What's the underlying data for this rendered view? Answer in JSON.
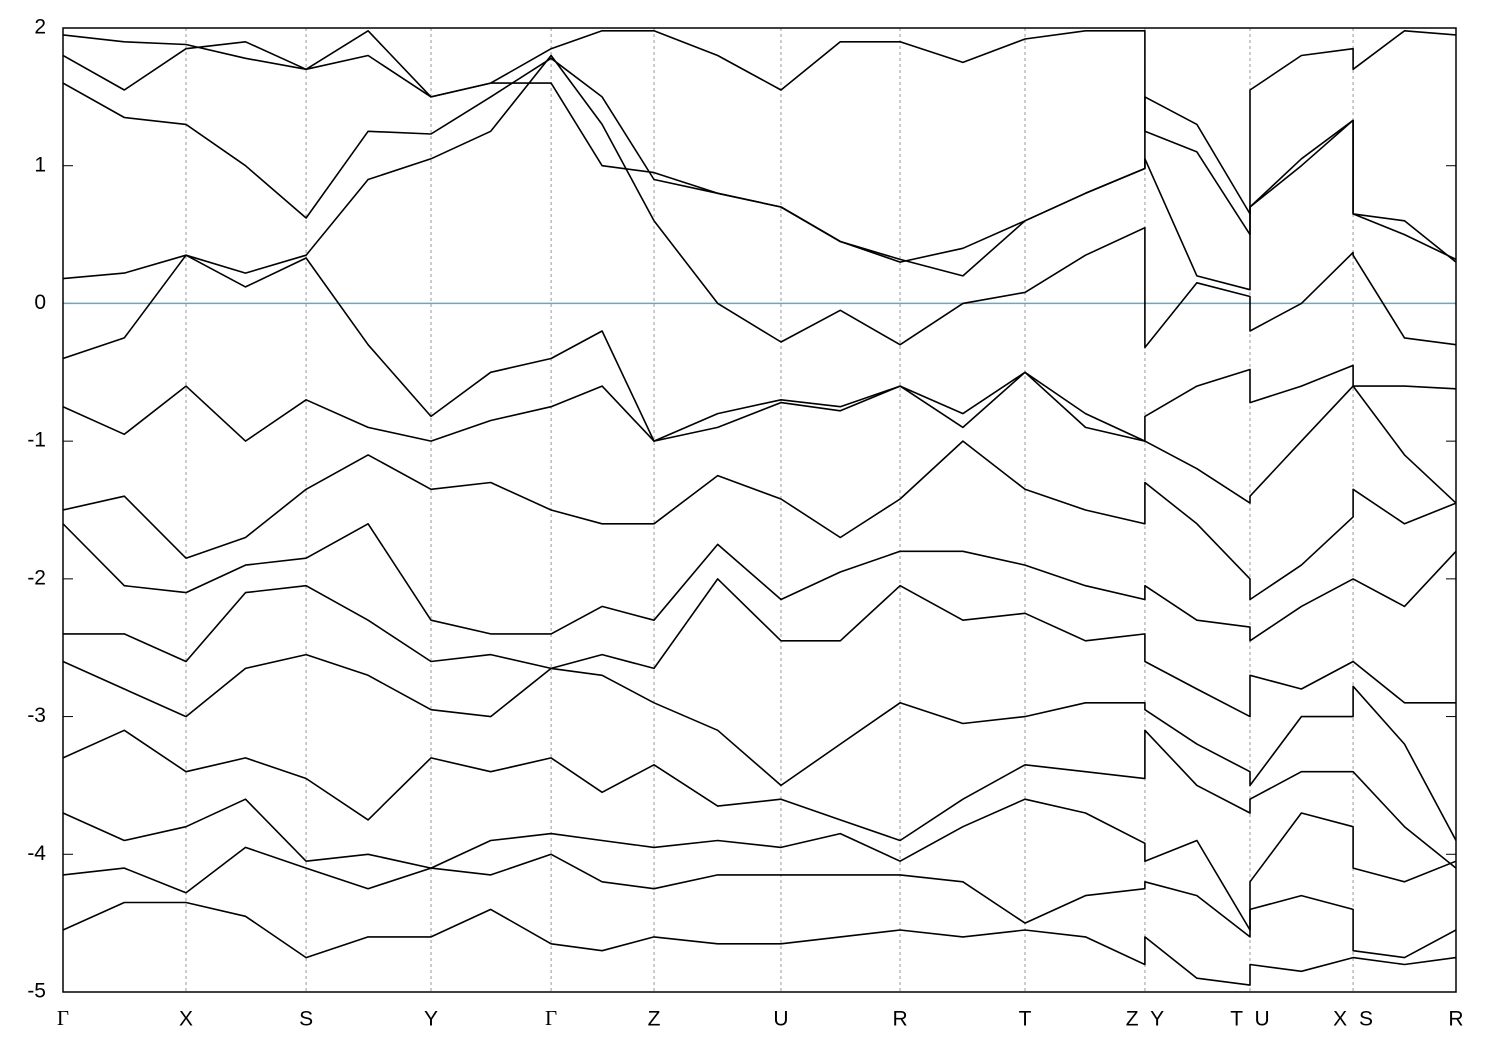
{
  "chart_data": {
    "type": "line",
    "color": "#000000",
    "grid": true,
    "fermi_line": {
      "value": 0,
      "color": "#5aaec8"
    },
    "xlim": [
      0,
      1
    ],
    "ylim": [
      -5,
      2
    ],
    "yticks": [
      -5,
      -4,
      -3,
      -2,
      -1,
      0,
      1,
      2
    ],
    "xticks": [
      {
        "value": 0,
        "label": "Γ"
      },
      {
        "value": 0.0883,
        "label": "X"
      },
      {
        "value": 0.1745,
        "label": "S"
      },
      {
        "value": 0.2642,
        "label": "Y"
      },
      {
        "value": 0.3504,
        "label": "Γ"
      },
      {
        "value": 0.4243,
        "label": "Z"
      },
      {
        "value": 0.5154,
        "label": "U"
      },
      {
        "value": 0.6009,
        "label": "R"
      },
      {
        "value": 0.6906,
        "label": "T"
      },
      {
        "value": 0.7767,
        "label": "Z Y"
      },
      {
        "value": 0.8521,
        "label": "T U"
      },
      {
        "value": 0.9261,
        "label": "X S"
      },
      {
        "value": 1,
        "label": "R"
      }
    ],
    "x": [
      0,
      0.044,
      0.0883,
      0.131,
      0.1745,
      0.219,
      0.2642,
      0.307,
      0.3504,
      0.387,
      0.4243,
      0.47,
      0.5154,
      0.558,
      0.6009,
      0.646,
      0.6906,
      0.734,
      0.7767,
      0.7767,
      0.814,
      0.8521,
      0.8521,
      0.889,
      0.9261,
      0.9261,
      0.963,
      1
    ],
    "series": [
      {
        "values": [
          1.95,
          1.9,
          1.88,
          1.78,
          1.7,
          1.8,
          1.5,
          1.6,
          1.6,
          1.0,
          0.95,
          0.8,
          0.7,
          0.45,
          0.3,
          0.4,
          0.6,
          0.8,
          0.98,
          1.5,
          1.3,
          0.65,
          0.7,
          1.05,
          1.33,
          0.65,
          0.5,
          0.32
        ]
      },
      {
        "values": [
          1.8,
          1.55,
          1.85,
          1.9,
          1.7,
          1.98,
          1.5,
          1.6,
          1.85,
          1.98,
          1.98,
          1.8,
          1.55,
          1.9,
          1.9,
          1.75,
          1.92,
          1.98,
          1.98,
          1.25,
          1.1,
          0.5,
          1.55,
          1.8,
          1.85,
          1.7,
          1.98,
          1.95
        ]
      },
      {
        "values": [
          1.6,
          1.35,
          1.3,
          1.0,
          0.62,
          1.25,
          1.23,
          1.5,
          1.78,
          1.5,
          0.9,
          0.8,
          0.7,
          0.45,
          0.32,
          0.2,
          0.6,
          0.8,
          0.98,
          1.05,
          0.2,
          0.1,
          0.7,
          1.0,
          1.33,
          0.65,
          0.6,
          0.3
        ]
      },
      {
        "values": [
          0.18,
          0.22,
          0.35,
          0.12,
          0.33,
          -0.3,
          -0.82,
          -0.5,
          -0.4,
          -0.2,
          -1.0,
          -0.9,
          -0.72,
          -0.78,
          -0.6,
          -0.8,
          -0.5,
          -0.9,
          -1.0,
          -0.82,
          -0.6,
          -0.48,
          -0.72,
          -0.6,
          -0.45,
          -0.6,
          -0.6,
          -0.62
        ]
      },
      {
        "values": [
          -0.4,
          -0.25,
          0.35,
          0.22,
          0.35,
          0.9,
          1.05,
          1.25,
          1.8,
          1.3,
          0.6,
          0.0,
          -0.28,
          -0.05,
          -0.3,
          0.0,
          0.08,
          0.35,
          0.55,
          -0.32,
          0.15,
          0.05,
          -0.2,
          0.0,
          0.37,
          0.35,
          -0.25,
          -0.3
        ]
      },
      {
        "values": [
          -0.75,
          -0.95,
          -0.6,
          -1.0,
          -0.7,
          -0.9,
          -1.0,
          -0.85,
          -0.75,
          -0.6,
          -1.0,
          -0.8,
          -0.7,
          -0.75,
          -0.6,
          -0.9,
          -0.5,
          -0.8,
          -1.0,
          -1.0,
          -1.2,
          -1.45,
          -1.4,
          -1.0,
          -0.6,
          -0.6,
          -1.1,
          -1.45
        ]
      },
      {
        "values": [
          -1.5,
          -1.4,
          -1.85,
          -1.7,
          -1.35,
          -1.1,
          -1.35,
          -1.3,
          -1.5,
          -1.6,
          -1.6,
          -1.25,
          -1.42,
          -1.7,
          -1.42,
          -1.0,
          -1.35,
          -1.5,
          -1.6,
          -1.3,
          -1.6,
          -2.0,
          -2.15,
          -1.9,
          -1.55,
          -1.35,
          -1.6,
          -1.45
        ]
      },
      {
        "values": [
          -1.6,
          -2.05,
          -2.1,
          -1.9,
          -1.85,
          -1.6,
          -2.3,
          -2.4,
          -2.4,
          -2.2,
          -2.3,
          -1.75,
          -2.15,
          -1.95,
          -1.8,
          -1.8,
          -1.9,
          -2.05,
          -2.15,
          -2.05,
          -2.3,
          -2.35,
          -2.45,
          -2.2,
          -2.0,
          -2.0,
          -2.2,
          -1.8
        ]
      },
      {
        "values": [
          -2.4,
          -2.4,
          -2.6,
          -2.1,
          -2.05,
          -2.3,
          -2.6,
          -2.55,
          -2.65,
          -2.55,
          -2.65,
          -2.0,
          -2.45,
          -2.45,
          -2.05,
          -2.3,
          -2.25,
          -2.45,
          -2.4,
          -2.6,
          -2.8,
          -3.0,
          -2.7,
          -2.8,
          -2.6,
          -2.6,
          -2.9,
          -2.9
        ]
      },
      {
        "values": [
          -2.6,
          -2.8,
          -3.0,
          -2.65,
          -2.55,
          -2.7,
          -2.95,
          -3.0,
          -2.65,
          -2.7,
          -2.9,
          -3.1,
          -3.5,
          -3.2,
          -2.9,
          -3.05,
          -3.0,
          -2.9,
          -2.9,
          -2.95,
          -3.2,
          -3.4,
          -3.5,
          -3.0,
          -3.0,
          -2.78,
          -3.2,
          -3.9
        ]
      },
      {
        "values": [
          -3.3,
          -3.1,
          -3.4,
          -3.3,
          -3.45,
          -3.75,
          -3.3,
          -3.4,
          -3.3,
          -3.55,
          -3.35,
          -3.65,
          -3.6,
          -3.75,
          -3.9,
          -3.6,
          -3.35,
          -3.4,
          -3.45,
          -3.1,
          -3.5,
          -3.7,
          -3.6,
          -3.4,
          -3.4,
          -3.4,
          -3.8,
          -4.1
        ]
      },
      {
        "values": [
          -3.7,
          -3.9,
          -3.8,
          -3.6,
          -4.05,
          -4.0,
          -4.1,
          -3.9,
          -3.85,
          -3.9,
          -3.95,
          -3.9,
          -3.95,
          -3.85,
          -4.05,
          -3.8,
          -3.6,
          -3.7,
          -3.92,
          -4.05,
          -3.9,
          -4.55,
          -4.2,
          -3.7,
          -3.8,
          -4.1,
          -4.2,
          -4.05
        ]
      },
      {
        "values": [
          -4.15,
          -4.1,
          -4.28,
          -3.95,
          -4.1,
          -4.25,
          -4.1,
          -4.15,
          -4.0,
          -4.2,
          -4.25,
          -4.15,
          -4.15,
          -4.15,
          -4.15,
          -4.2,
          -4.5,
          -4.3,
          -4.25,
          -4.2,
          -4.3,
          -4.6,
          -4.4,
          -4.3,
          -4.4,
          -4.7,
          -4.75,
          -4.55
        ]
      },
      {
        "values": [
          -4.55,
          -4.35,
          -4.35,
          -4.45,
          -4.75,
          -4.6,
          -4.6,
          -4.4,
          -4.65,
          -4.7,
          -4.6,
          -4.65,
          -4.65,
          -4.6,
          -4.55,
          -4.6,
          -4.55,
          -4.6,
          -4.8,
          -4.6,
          -4.9,
          -4.95,
          -4.8,
          -4.85,
          -4.75,
          -4.75,
          -4.8,
          -4.75
        ]
      }
    ]
  }
}
